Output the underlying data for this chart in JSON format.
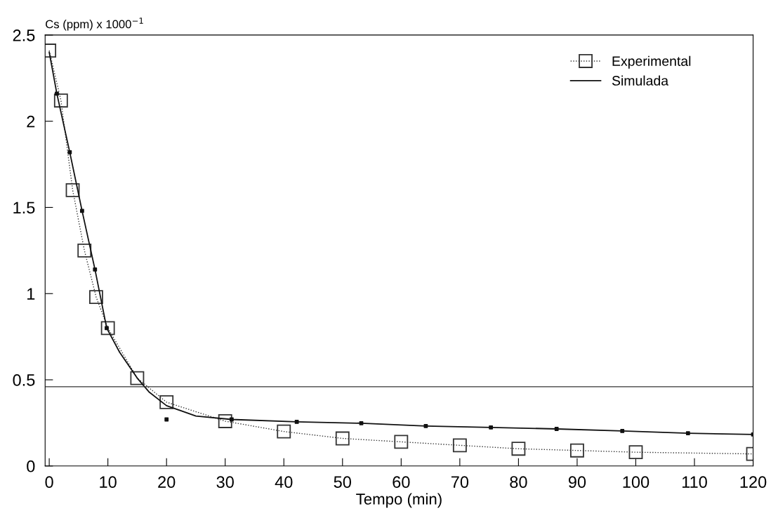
{
  "chart_data": {
    "type": "line",
    "ylabel": "Cs (ppm) x 1000$^{−1}$",
    "xlabel": "Tempo (min)",
    "series": [
      {
        "name": "Experimental",
        "color": "#333333",
        "marker": "square",
        "line_style": "dotted",
        "x": [
          0,
          2,
          4,
          6,
          8,
          10,
          15,
          20,
          30,
          40,
          50,
          60,
          70,
          80,
          90,
          100,
          120
        ],
        "values": [
          2.41,
          2.12,
          1.6,
          1.25,
          0.98,
          0.8,
          0.51,
          0.37,
          0.26,
          0.2,
          0.16,
          0.14,
          0.12,
          0.1,
          0.09,
          0.08,
          0.07
        ]
      },
      {
        "name": "Simulada",
        "color": "#111111",
        "marker": "none",
        "line_style": "solid",
        "x": [
          0,
          1.3,
          3.5,
          5.6,
          7.8,
          9.8,
          12,
          15,
          17,
          20,
          25,
          31.1,
          42.2,
          53.2,
          64.2,
          75.3,
          86.5,
          97.7,
          108.9,
          120
        ],
        "values": [
          2.4,
          2.16,
          1.82,
          1.48,
          1.14,
          0.8,
          0.66,
          0.51,
          0.43,
          0.35,
          0.29,
          0.27,
          0.256,
          0.248,
          0.232,
          0.224,
          0.215,
          0.203,
          0.19,
          0.183
        ]
      },
      {
        "type": "scatter",
        "color": "#111111",
        "marker": "square",
        "x": [
          1.3,
          3.5,
          5.6,
          7.8,
          9.8,
          20,
          31.1,
          42.2,
          53.2,
          64.2,
          75.3,
          86.5,
          97.7,
          108.9,
          120
        ],
        "values": [
          2.16,
          1.82,
          1.48,
          1.14,
          0.8,
          0.27,
          0.27,
          0.256,
          0.248,
          0.232,
          0.224,
          0.215,
          0.203,
          0.19,
          0.183
        ]
      }
    ],
    "ref_lines": [
      {
        "axis": "y",
        "value": 0.46,
        "color": "#333333",
        "line_style": "solid"
      }
    ],
    "xlim": [
      -0.7,
      120
    ],
    "ylim": [
      0,
      2.5
    ],
    "xticks": [
      0,
      10,
      20,
      30,
      40,
      50,
      60,
      70,
      80,
      90,
      100,
      110,
      120
    ],
    "yticks": [
      0,
      0.5,
      1,
      1.5,
      2,
      2.5
    ],
    "grid": false,
    "legend": "top right"
  }
}
